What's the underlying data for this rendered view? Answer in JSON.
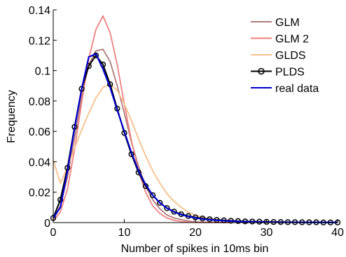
{
  "chart_data": {
    "type": "line",
    "xlabel": "Number of spikes in 10ms bin",
    "ylabel": "Frequency",
    "xlim": [
      0,
      40
    ],
    "ylim": [
      0,
      0.14
    ],
    "xticks": [
      "0",
      "10",
      "20",
      "30",
      "40"
    ],
    "yticks": [
      "0",
      "0.02",
      "0.04",
      "0.06",
      "0.08",
      "0.1",
      "0.12",
      "0.14"
    ],
    "grid": false,
    "legend_position": "top-right",
    "series": [
      {
        "name": "GLM",
        "color": "#b07a7a",
        "marker": "none",
        "x": [
          0,
          1,
          2,
          3,
          4,
          5,
          6,
          7,
          8,
          9,
          10,
          11,
          12,
          13,
          14,
          15,
          16,
          17,
          18,
          19,
          20,
          21,
          22,
          23,
          24,
          25
        ],
        "values": [
          0.002,
          0.011,
          0.03,
          0.056,
          0.083,
          0.104,
          0.113,
          0.114,
          0.106,
          0.09,
          0.072,
          0.053,
          0.037,
          0.024,
          0.015,
          0.009,
          0.005,
          0.003,
          0.002,
          0.001,
          0.0005,
          0.0003,
          0.0002,
          0.0001,
          0.0,
          0.0
        ]
      },
      {
        "name": "GLM 2",
        "color": "#f08080",
        "marker": "none",
        "x": [
          0,
          1,
          2,
          3,
          4,
          5,
          6,
          7,
          8,
          9,
          10,
          11,
          12,
          13,
          14,
          15,
          16,
          17,
          18,
          19,
          20,
          21,
          22,
          23,
          24,
          25
        ],
        "values": [
          0.001,
          0.007,
          0.022,
          0.048,
          0.079,
          0.108,
          0.127,
          0.136,
          0.125,
          0.104,
          0.078,
          0.054,
          0.034,
          0.02,
          0.011,
          0.006,
          0.003,
          0.0015,
          0.0007,
          0.0003,
          0.0001,
          0.0,
          0.0,
          0.0,
          0.0,
          0.0
        ]
      },
      {
        "name": "GLDS",
        "color": "#f7c08a",
        "marker": "none",
        "x": [
          0,
          1,
          2,
          3,
          4,
          5,
          6,
          7,
          8,
          9,
          10,
          11,
          12,
          13,
          14,
          15,
          16,
          17,
          18,
          19,
          20,
          21,
          22,
          23,
          24,
          25,
          26,
          27,
          28,
          29,
          30
        ],
        "values": [
          0.041,
          0.026,
          0.036,
          0.049,
          0.061,
          0.072,
          0.082,
          0.089,
          0.091,
          0.087,
          0.078,
          0.067,
          0.055,
          0.044,
          0.034,
          0.026,
          0.019,
          0.014,
          0.01,
          0.007,
          0.005,
          0.0035,
          0.0025,
          0.0017,
          0.0012,
          0.0008,
          0.0005,
          0.0003,
          0.0002,
          0.0001,
          0.0
        ]
      },
      {
        "name": "PLDS",
        "color": "#000000",
        "marker": "circle",
        "x": [
          0,
          1,
          2,
          3,
          4,
          5,
          6,
          7,
          8,
          9,
          10,
          11,
          12,
          13,
          14,
          15,
          16,
          17,
          18,
          19,
          20,
          21,
          22,
          23,
          24,
          25,
          26,
          27,
          28,
          29,
          30,
          31,
          32,
          33,
          34,
          35,
          36,
          37,
          38,
          39,
          40
        ],
        "values": [
          0.003,
          0.015,
          0.036,
          0.063,
          0.088,
          0.103,
          0.11,
          0.104,
          0.091,
          0.075,
          0.059,
          0.045,
          0.033,
          0.024,
          0.018,
          0.013,
          0.0095,
          0.0072,
          0.0055,
          0.0043,
          0.0034,
          0.0027,
          0.0022,
          0.0018,
          0.0015,
          0.0012,
          0.001,
          0.0008,
          0.0007,
          0.0006,
          0.0005,
          0.0004,
          0.0004,
          0.0003,
          0.0003,
          0.0002,
          0.0002,
          0.0002,
          0.0001,
          0.0001,
          0.0001
        ]
      },
      {
        "name": "real data",
        "color": "#0000cc",
        "marker": "none",
        "x": [
          0,
          1,
          2,
          3,
          4,
          5,
          6,
          7,
          8,
          9,
          10,
          11,
          12,
          13,
          14,
          15,
          16,
          17,
          18,
          19,
          20,
          21,
          22,
          23,
          24,
          25,
          26,
          27,
          28,
          29,
          30,
          31,
          32,
          33,
          34,
          35,
          36,
          37,
          38,
          39,
          40
        ],
        "values": [
          0.003,
          0.01,
          0.034,
          0.062,
          0.088,
          0.109,
          0.111,
          0.101,
          0.089,
          0.074,
          0.06,
          0.046,
          0.034,
          0.025,
          0.018,
          0.013,
          0.0095,
          0.007,
          0.0052,
          0.004,
          0.003,
          0.0024,
          0.0019,
          0.0015,
          0.0012,
          0.001,
          0.0008,
          0.0006,
          0.0005,
          0.0004,
          0.0003,
          0.0003,
          0.0002,
          0.0002,
          0.0002,
          0.0001,
          0.0001,
          0.0001,
          0.0001,
          0.0001,
          0.0001
        ]
      }
    ]
  }
}
